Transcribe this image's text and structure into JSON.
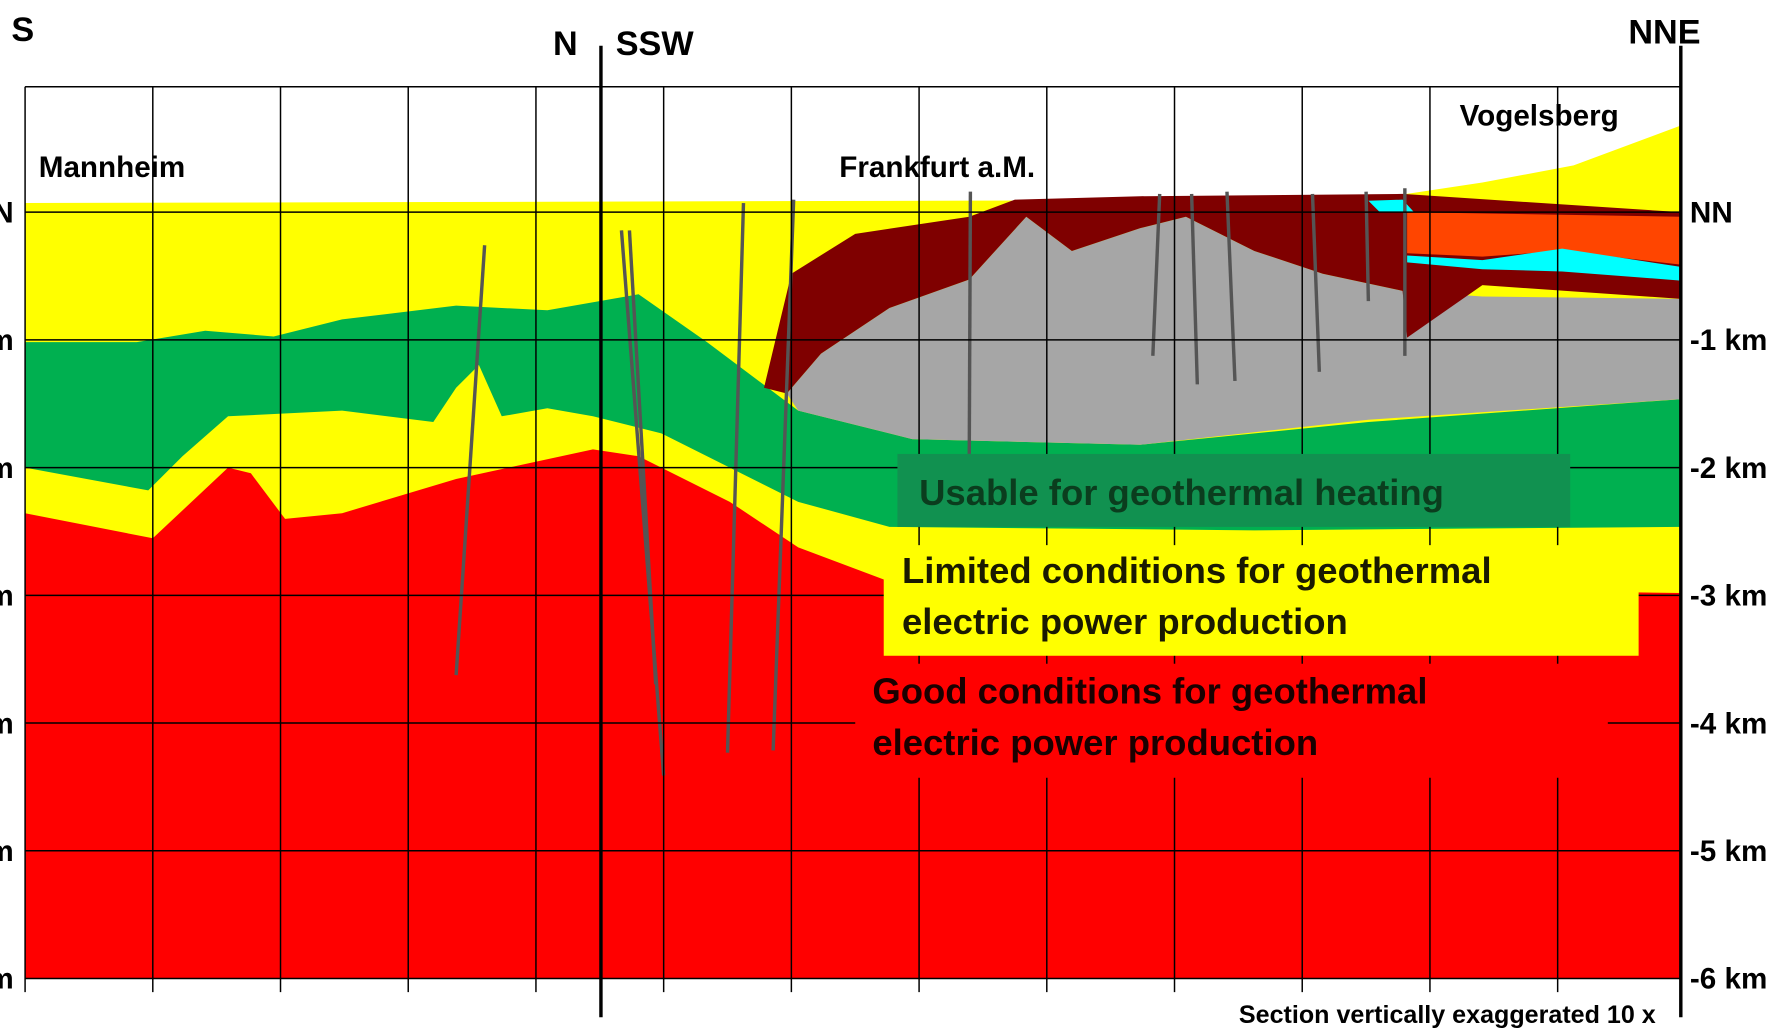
{
  "directions": {
    "left_start": "S",
    "left_end": "N",
    "right_start": "SSW",
    "right_end": "NNE"
  },
  "places": [
    "Mannheim",
    "Frankfurt a.M.",
    "Vogelsberg"
  ],
  "depth_labels": [
    "NN",
    "-1 km",
    "-2 km",
    "-3 km",
    "-4 km",
    "-5 km",
    "-6 km"
  ],
  "zones": {
    "heating": "Usable for geothermal heating",
    "limited": [
      "Limited conditions for geothermal",
      "electric power production"
    ],
    "good": [
      "Good conditions for geothermal",
      "electric power production"
    ]
  },
  "note": "Section vertically exaggerated 10 x"
}
